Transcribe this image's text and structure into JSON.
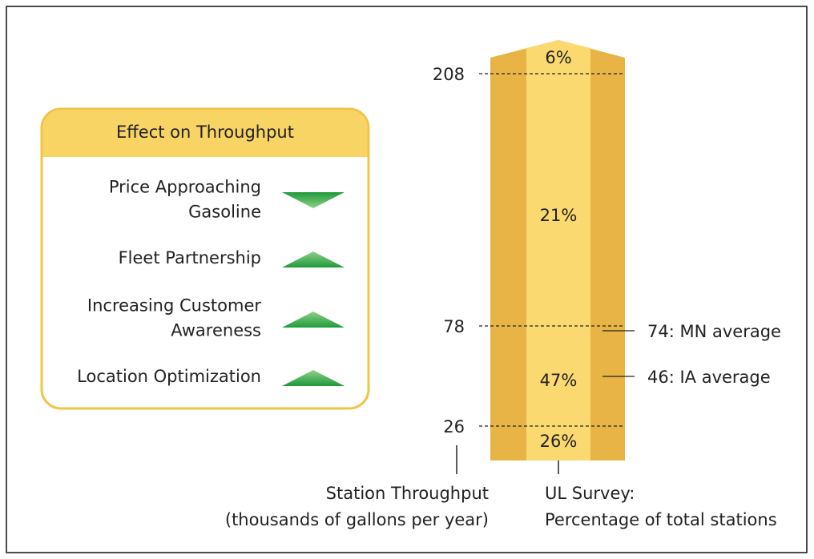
{
  "panel": {
    "title": "Effect on Throughput",
    "items": [
      {
        "lines": [
          "Price Approaching",
          "Gasoline"
        ],
        "direction": "down"
      },
      {
        "lines": [
          "Fleet Partnership"
        ],
        "direction": "up"
      },
      {
        "lines": [
          "Increasing Customer",
          "Awareness"
        ],
        "direction": "up"
      },
      {
        "lines": [
          "Location Optimization"
        ],
        "direction": "up"
      }
    ]
  },
  "column": {
    "thresholds": [
      208,
      78,
      26
    ],
    "segments": [
      "6%",
      "21%",
      "47%",
      "26%"
    ],
    "markers": [
      "74:  MN average",
      "46:  IA average"
    ],
    "left_label": [
      "Station Throughput",
      "(thousands of gallons per year)"
    ],
    "right_label": [
      "UL Survey:",
      "Percentage of total stations"
    ]
  }
}
